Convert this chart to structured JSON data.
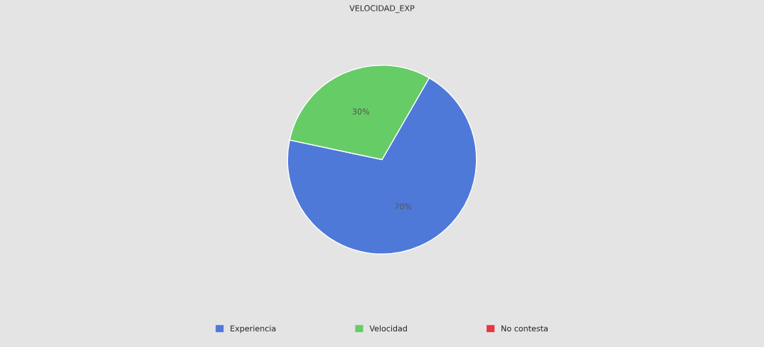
{
  "chart_data": {
    "type": "pie",
    "title": "VELOCIDAD_EXP",
    "categories": [
      "Experiencia",
      "Velocidad",
      "No contesta"
    ],
    "values": [
      70,
      30,
      0
    ],
    "colors": [
      "#4f79d8",
      "#66cc66",
      "#ee3344"
    ],
    "value_labels": [
      "70%",
      "30%",
      null
    ],
    "legend": "bottom"
  }
}
